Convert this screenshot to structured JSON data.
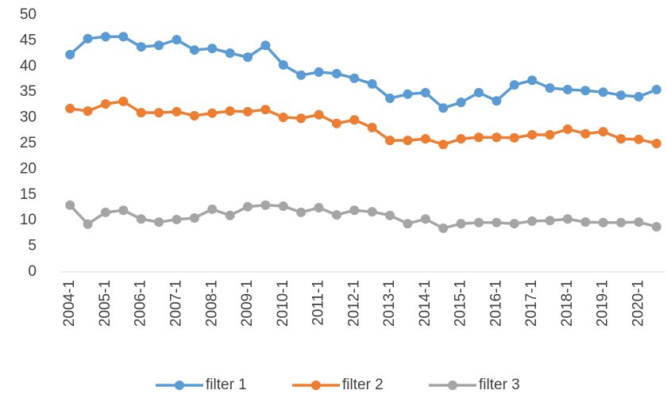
{
  "chart_data": {
    "type": "line",
    "categories": [
      "2004-1",
      null,
      "2005-1",
      null,
      "2006-1",
      null,
      "2007-1",
      null,
      "2008-1",
      null,
      "2009-1",
      null,
      "2010-1",
      null,
      "2011-1",
      null,
      "2012-1",
      null,
      "2013-1",
      null,
      "2014-1",
      null,
      "2015-1",
      null,
      "2016-1",
      null,
      "2017-1",
      null,
      "2018-1",
      null,
      "2019-1",
      null,
      "2020-1",
      null
    ],
    "series": [
      {
        "name": "filter 1",
        "color": "#5b9bd5",
        "values": [
          42.3,
          45.4,
          45.8,
          45.8,
          43.8,
          44.1,
          45.2,
          43.2,
          43.5,
          42.6,
          41.8,
          44.1,
          40.3,
          38.3,
          38.9,
          38.6,
          37.7,
          36.6,
          33.8,
          34.6,
          34.9,
          31.9,
          33.0,
          34.9,
          33.3,
          36.4,
          37.3,
          35.8,
          35.5,
          35.3,
          35.0,
          34.4,
          34.1,
          35.5
        ]
      },
      {
        "name": "filter 2",
        "color": "#ed7d31",
        "values": [
          31.8,
          31.3,
          32.7,
          33.2,
          31.0,
          31.0,
          31.2,
          30.4,
          30.9,
          31.3,
          31.2,
          31.6,
          30.1,
          29.9,
          30.6,
          28.9,
          29.6,
          28.1,
          25.6,
          25.6,
          25.9,
          24.8,
          25.9,
          26.2,
          26.2,
          26.1,
          26.7,
          26.7,
          27.8,
          26.9,
          27.3,
          25.9,
          25.8,
          25.0
        ]
      },
      {
        "name": "filter 3",
        "color": "#a5a5a5",
        "values": [
          13.0,
          9.3,
          11.6,
          12.0,
          10.3,
          9.7,
          10.2,
          10.5,
          12.2,
          11.0,
          12.7,
          13.0,
          12.8,
          11.6,
          12.5,
          11.1,
          12.0,
          11.7,
          11.0,
          9.4,
          10.3,
          8.5,
          9.4,
          9.6,
          9.6,
          9.4,
          9.9,
          10.0,
          10.3,
          9.7,
          9.6,
          9.6,
          9.7,
          8.8
        ]
      }
    ],
    "ylim": [
      0,
      50
    ],
    "yticks": [
      0,
      5,
      10,
      15,
      20,
      25,
      30,
      35,
      40,
      45,
      50
    ],
    "grid": false,
    "legend": "bottom"
  }
}
